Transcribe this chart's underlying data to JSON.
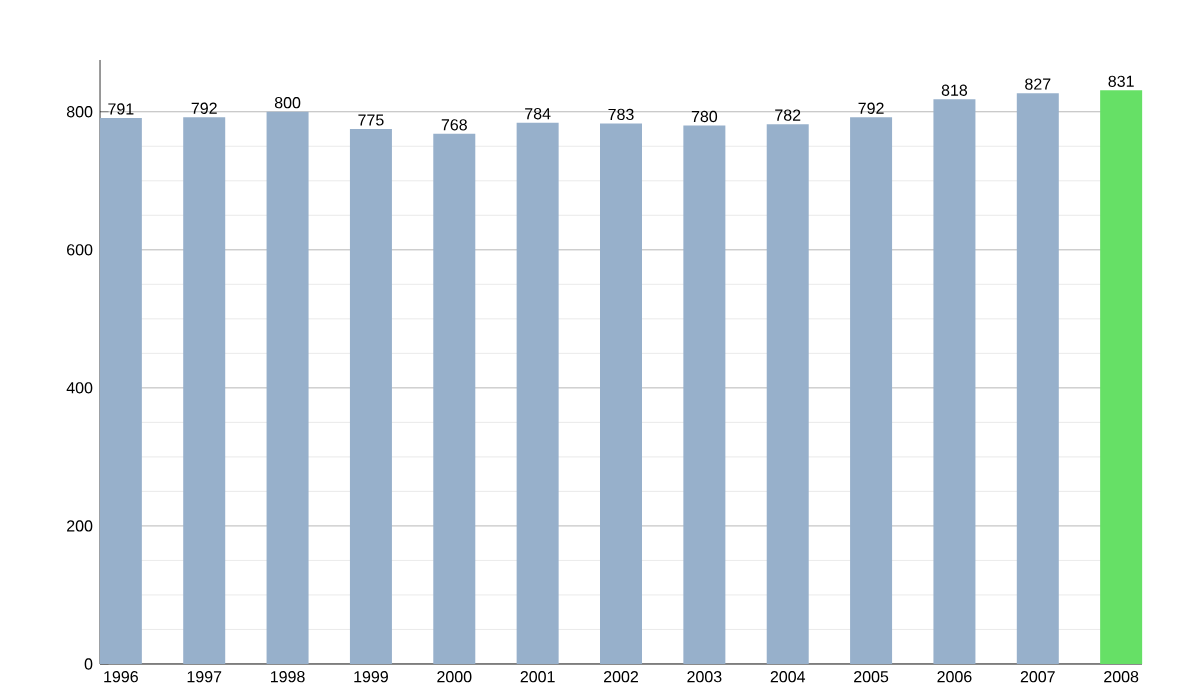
{
  "chart_data": {
    "type": "bar",
    "categories": [
      "1996",
      "1997",
      "1998",
      "1999",
      "2000",
      "2001",
      "2002",
      "2003",
      "2004",
      "2005",
      "2006",
      "2007",
      "2008"
    ],
    "values": [
      791,
      792,
      800,
      775,
      768,
      784,
      783,
      780,
      782,
      792,
      818,
      827,
      831
    ],
    "colors": [
      "#97b0cb",
      "#97b0cb",
      "#97b0cb",
      "#97b0cb",
      "#97b0cb",
      "#97b0cb",
      "#97b0cb",
      "#97b0cb",
      "#97b0cb",
      "#97b0cb",
      "#97b0cb",
      "#97b0cb",
      "#66e066"
    ],
    "ylim": [
      0,
      875
    ],
    "yticks": [
      0,
      200,
      400,
      600,
      800
    ],
    "grid": "y",
    "data_labels": true
  }
}
